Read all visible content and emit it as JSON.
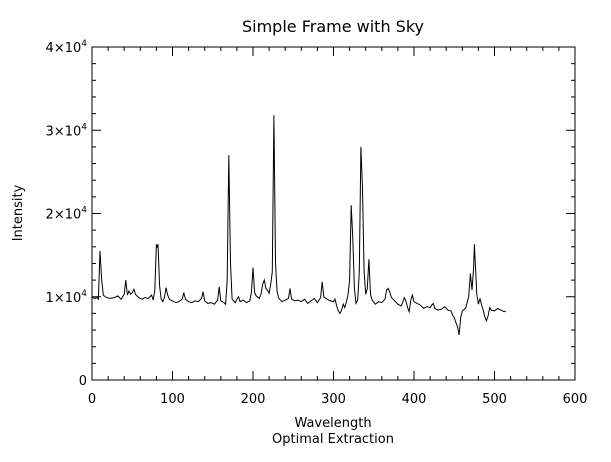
{
  "chart_data": {
    "type": "line",
    "title": "Simple Frame with Sky",
    "xlabel": "Wavelength",
    "subtitle": "Optimal Extraction",
    "ylabel": "Intensity",
    "xlim": [
      0,
      600
    ],
    "ylim": [
      0,
      40000
    ],
    "xticks": [
      0,
      100,
      200,
      300,
      400,
      500,
      600
    ],
    "xtick_labels": [
      "0",
      "100",
      "200",
      "300",
      "400",
      "500",
      "600"
    ],
    "yticks": [
      0,
      10000,
      20000,
      30000,
      40000
    ],
    "ytick_labels": [
      {
        "base": "0",
        "exp": ""
      },
      {
        "base": "1×10",
        "exp": "4"
      },
      {
        "base": "2×10",
        "exp": "4"
      },
      {
        "base": "3×10",
        "exp": "4"
      },
      {
        "base": "4×10",
        "exp": "4"
      }
    ],
    "grid": false,
    "line_color": "#000000",
    "series": [
      {
        "points": [
          [
            0,
            10000
          ],
          [
            3,
            9800
          ],
          [
            6,
            9900
          ],
          [
            8,
            9700
          ],
          [
            10,
            15500
          ],
          [
            12,
            12000
          ],
          [
            14,
            10200
          ],
          [
            18,
            9900
          ],
          [
            22,
            9800
          ],
          [
            28,
            9900
          ],
          [
            32,
            10100
          ],
          [
            36,
            9700
          ],
          [
            40,
            10300
          ],
          [
            42,
            12000
          ],
          [
            44,
            10200
          ],
          [
            46,
            10700
          ],
          [
            48,
            10300
          ],
          [
            50,
            10500
          ],
          [
            52,
            10900
          ],
          [
            54,
            10300
          ],
          [
            58,
            9900
          ],
          [
            62,
            9700
          ],
          [
            66,
            9900
          ],
          [
            70,
            9800
          ],
          [
            74,
            10200
          ],
          [
            76,
            9600
          ],
          [
            78,
            10800
          ],
          [
            80,
            16300
          ],
          [
            81,
            15900
          ],
          [
            82,
            16300
          ],
          [
            84,
            11300
          ],
          [
            86,
            9700
          ],
          [
            88,
            9400
          ],
          [
            90,
            9900
          ],
          [
            92,
            11100
          ],
          [
            94,
            10200
          ],
          [
            96,
            9700
          ],
          [
            100,
            9500
          ],
          [
            104,
            9300
          ],
          [
            108,
            9400
          ],
          [
            112,
            9700
          ],
          [
            114,
            10500
          ],
          [
            116,
            9700
          ],
          [
            120,
            9400
          ],
          [
            124,
            9300
          ],
          [
            128,
            9500
          ],
          [
            132,
            9400
          ],
          [
            136,
            9800
          ],
          [
            138,
            10600
          ],
          [
            140,
            9500
          ],
          [
            144,
            9200
          ],
          [
            148,
            9300
          ],
          [
            152,
            9100
          ],
          [
            156,
            9600
          ],
          [
            158,
            11200
          ],
          [
            160,
            9500
          ],
          [
            164,
            9300
          ],
          [
            166,
            9100
          ],
          [
            168,
            12000
          ],
          [
            170,
            27000
          ],
          [
            172,
            14000
          ],
          [
            174,
            9700
          ],
          [
            176,
            9500
          ],
          [
            178,
            9300
          ],
          [
            180,
            9700
          ],
          [
            182,
            10000
          ],
          [
            184,
            9400
          ],
          [
            188,
            9600
          ],
          [
            192,
            9300
          ],
          [
            196,
            9500
          ],
          [
            198,
            10500
          ],
          [
            200,
            13500
          ],
          [
            202,
            10500
          ],
          [
            204,
            10100
          ],
          [
            208,
            9800
          ],
          [
            210,
            10300
          ],
          [
            212,
            11500
          ],
          [
            214,
            12000
          ],
          [
            216,
            11000
          ],
          [
            218,
            10800
          ],
          [
            220,
            10400
          ],
          [
            222,
            11500
          ],
          [
            224,
            13000
          ],
          [
            226,
            31800
          ],
          [
            228,
            14000
          ],
          [
            230,
            10600
          ],
          [
            232,
            9800
          ],
          [
            236,
            9400
          ],
          [
            240,
            9600
          ],
          [
            244,
            9800
          ],
          [
            246,
            11000
          ],
          [
            248,
            9700
          ],
          [
            252,
            9500
          ],
          [
            256,
            9600
          ],
          [
            260,
            9400
          ],
          [
            264,
            9700
          ],
          [
            268,
            9200
          ],
          [
            272,
            9500
          ],
          [
            276,
            9800
          ],
          [
            280,
            9300
          ],
          [
            284,
            9900
          ],
          [
            286,
            11800
          ],
          [
            288,
            10000
          ],
          [
            292,
            9700
          ],
          [
            296,
            9500
          ],
          [
            300,
            9400
          ],
          [
            302,
            9700
          ],
          [
            304,
            8900
          ],
          [
            306,
            8300
          ],
          [
            308,
            8000
          ],
          [
            310,
            8400
          ],
          [
            312,
            9100
          ],
          [
            314,
            8700
          ],
          [
            316,
            9400
          ],
          [
            318,
            10200
          ],
          [
            320,
            12000
          ],
          [
            322,
            21000
          ],
          [
            324,
            17000
          ],
          [
            326,
            11000
          ],
          [
            328,
            9200
          ],
          [
            330,
            9600
          ],
          [
            332,
            13000
          ],
          [
            334,
            28000
          ],
          [
            336,
            23000
          ],
          [
            338,
            13000
          ],
          [
            340,
            10300
          ],
          [
            342,
            11000
          ],
          [
            344,
            14500
          ],
          [
            346,
            10300
          ],
          [
            348,
            9600
          ],
          [
            352,
            9100
          ],
          [
            356,
            9400
          ],
          [
            360,
            9300
          ],
          [
            364,
            9700
          ],
          [
            366,
            10800
          ],
          [
            368,
            11000
          ],
          [
            370,
            10500
          ],
          [
            372,
            9900
          ],
          [
            376,
            9500
          ],
          [
            380,
            9100
          ],
          [
            384,
            8900
          ],
          [
            386,
            9300
          ],
          [
            388,
            9900
          ],
          [
            390,
            9500
          ],
          [
            392,
            8700
          ],
          [
            394,
            8200
          ],
          [
            396,
            9600
          ],
          [
            398,
            10200
          ],
          [
            400,
            9400
          ],
          [
            404,
            9200
          ],
          [
            408,
            9000
          ],
          [
            412,
            8600
          ],
          [
            416,
            8800
          ],
          [
            420,
            8700
          ],
          [
            422,
            9000
          ],
          [
            424,
            9200
          ],
          [
            426,
            8600
          ],
          [
            430,
            8400
          ],
          [
            434,
            8500
          ],
          [
            438,
            8800
          ],
          [
            442,
            8400
          ],
          [
            446,
            8300
          ],
          [
            448,
            7800
          ],
          [
            450,
            7500
          ],
          [
            452,
            6900
          ],
          [
            454,
            6400
          ],
          [
            456,
            5400
          ],
          [
            458,
            7500
          ],
          [
            460,
            8300
          ],
          [
            464,
            8600
          ],
          [
            468,
            10000
          ],
          [
            470,
            12800
          ],
          [
            472,
            10800
          ],
          [
            474,
            13500
          ],
          [
            475,
            16300
          ],
          [
            476,
            14200
          ],
          [
            478,
            10300
          ],
          [
            480,
            9100
          ],
          [
            482,
            9800
          ],
          [
            484,
            9000
          ],
          [
            486,
            8400
          ],
          [
            488,
            7600
          ],
          [
            490,
            7100
          ],
          [
            492,
            7700
          ],
          [
            494,
            8700
          ],
          [
            496,
            8400
          ],
          [
            500,
            8300
          ],
          [
            504,
            8600
          ],
          [
            508,
            8400
          ],
          [
            512,
            8200
          ],
          [
            514,
            8300
          ]
        ]
      }
    ]
  }
}
